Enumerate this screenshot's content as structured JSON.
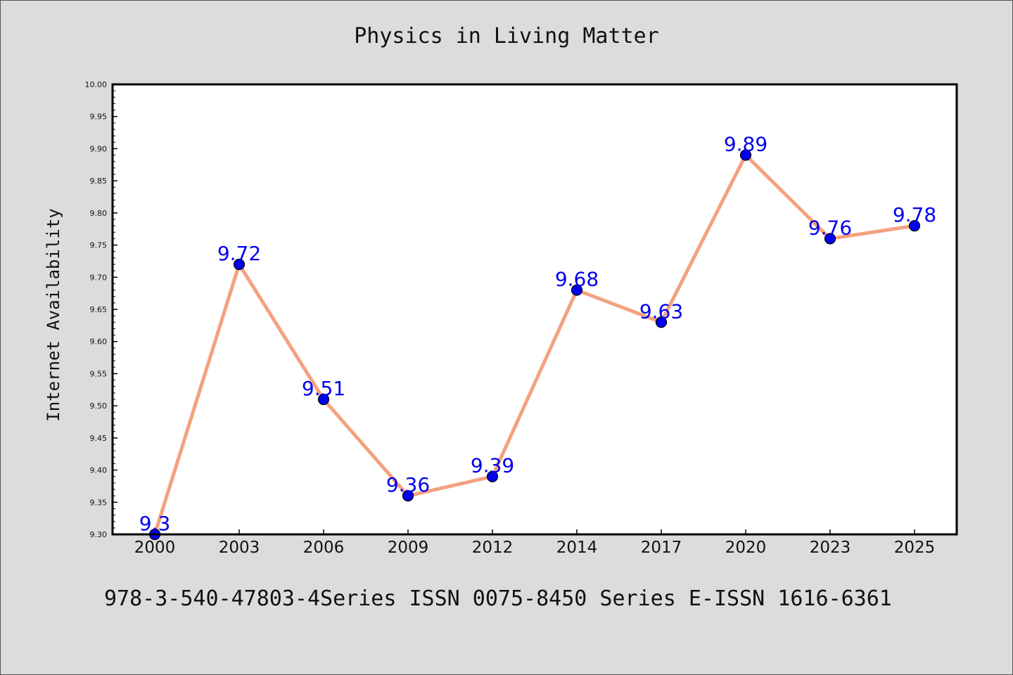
{
  "chart_data": {
    "type": "line",
    "title": "Physics in Living Matter",
    "xlabel": "",
    "ylabel": "Internet Availability",
    "categories": [
      "2000",
      "2003",
      "2006",
      "2009",
      "2012",
      "2014",
      "2017",
      "2020",
      "2023",
      "2025"
    ],
    "series": [
      {
        "values": [
          9.3,
          9.72,
          9.51,
          9.36,
          9.39,
          9.68,
          9.63,
          9.89,
          9.76,
          9.78
        ],
        "labels": [
          "9.3",
          "9.72",
          "9.51",
          "9.36",
          "9.39",
          "9.68",
          "9.63",
          "9.89",
          "9.76",
          "9.78"
        ],
        "line_color": "#f4a17f",
        "marker_color": "#0000ee"
      }
    ],
    "ylim": [
      9.3,
      10.0
    ],
    "yticks": [
      "9.30",
      "9.35",
      "9.40",
      "9.45",
      "9.50",
      "9.55",
      "9.60",
      "9.65",
      "9.70",
      "9.75",
      "9.80",
      "9.85",
      "9.90",
      "9.95",
      "10.00"
    ],
    "grid": false,
    "label_color": "#0000ee"
  },
  "footer": "978-3-540-47803-4Series ISSN 0075-8450 Series E-ISSN 1616-6361"
}
